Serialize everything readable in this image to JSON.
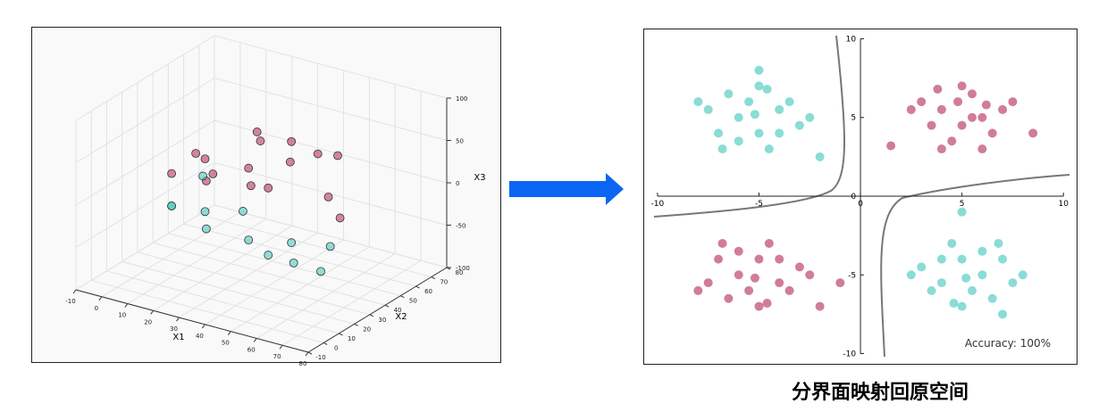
{
  "chart_data": [
    {
      "type": "scatter3d",
      "xlabel": "X1",
      "ylabel": "X2",
      "zlabel": "X3",
      "xlim": [
        -10,
        80
      ],
      "ylim": [
        -10,
        80
      ],
      "zlim": [
        -100,
        100
      ],
      "xticks": [
        -10,
        0,
        10,
        20,
        30,
        40,
        50,
        60,
        70,
        80
      ],
      "yticks": [
        -10,
        0,
        10,
        20,
        30,
        40,
        50,
        60,
        70,
        80
      ],
      "zticks": [
        -100,
        -50,
        0,
        50,
        100
      ],
      "series": [
        {
          "color": "#b3245a",
          "x": [
            9,
            16,
            25,
            36,
            30.3,
            42.3,
            49,
            25,
            56.3,
            72.3,
            25,
            49,
            42.3,
            64,
            9,
            81
          ],
          "y": [
            36,
            30.3,
            20.3,
            25,
            42.3,
            16,
            30.3,
            49,
            36,
            16,
            16,
            16,
            42.3,
            36,
            20.3,
            9
          ],
          "values": [
            25.5,
            31.1,
            31.8,
            42.4,
            50.6,
            36.8,
            54.4,
            49.5,
            63.6,
            48.1,
            28.3,
            39.6,
            59.7,
            67.9,
            19.1,
            38.2
          ]
        },
        {
          "color": "#3cc4ba",
          "x": [
            25,
            36,
            16,
            49,
            42.3,
            9,
            64,
            21.2,
            49,
            9,
            4,
            56.3
          ],
          "y": [
            16,
            25,
            30.3,
            16,
            42.3,
            20.3,
            25,
            46.2,
            56.3,
            20.3,
            49,
            20.3
          ],
          "values": [
            -28.3,
            -42.4,
            -31.1,
            -39.6,
            -59.7,
            -19.1,
            -56.6,
            -44.2,
            -74.2,
            -19.1,
            -19.8,
            -47.7
          ]
        }
      ]
    },
    {
      "type": "scatter",
      "annotation": "Accuracy: 100%",
      "xlim": [
        -10.7,
        10.65
      ],
      "ylim": [
        -10.65,
        10.65
      ],
      "xticks": [
        -10,
        -5,
        0,
        5,
        10
      ],
      "yticks": [
        -10,
        -5,
        0,
        5,
        10
      ],
      "series": [
        {
          "color": "#b3245a",
          "x": [
            3,
            4,
            5,
            6,
            4.5,
            5.5,
            6.5,
            3.5,
            7,
            5,
            4,
            6,
            7.5,
            2.5,
            5.5,
            4.8,
            6.2,
            3.8,
            8.5,
            1.5,
            -5,
            -6,
            -4,
            -5.5,
            -3,
            -7,
            -4.5,
            -6.5,
            -5,
            -3.5,
            -7.5,
            -4,
            -6,
            -2.5,
            -5.2,
            -8,
            -4.6,
            -6.8,
            -1,
            -2
          ],
          "values": [
            6,
            5.5,
            4.5,
            5,
            3.5,
            6.5,
            4,
            4.5,
            5.5,
            7,
            3,
            3,
            6,
            5.5,
            5,
            6,
            5.8,
            6.8,
            4,
            3.2,
            -4,
            -5,
            -5.5,
            -6,
            -4.5,
            -4,
            -3,
            -6.5,
            -7,
            -6,
            -5.5,
            -4,
            -3.5,
            -5,
            -5.2,
            -6,
            -6.8,
            -3,
            -5.5,
            -7
          ]
        },
        {
          "color": "#3cc4ba",
          "x": [
            -5,
            -6,
            -4,
            -5.5,
            -3,
            -7,
            -4.5,
            -6.5,
            -5,
            -3.5,
            -7.5,
            -4,
            -6,
            -2.5,
            -5.2,
            -8,
            -4.6,
            -6.8,
            -2,
            -5,
            5,
            6,
            4,
            5.5,
            3,
            7,
            4.5,
            6.5,
            5,
            3.5,
            7.5,
            4,
            6,
            2.5,
            5.2,
            8,
            4.6,
            6.8,
            5,
            7
          ],
          "values": [
            4,
            5,
            5.5,
            6,
            4.5,
            4,
            3,
            6.5,
            7,
            6,
            5.5,
            4,
            3.5,
            5,
            5.2,
            6,
            6.8,
            3,
            2.5,
            8,
            -4,
            -5,
            -5.5,
            -6,
            -4.5,
            -4,
            -3,
            -6.5,
            -7,
            -6,
            -5.5,
            -4,
            -3.5,
            -5,
            -5.2,
            -5,
            -6.8,
            -3,
            -1,
            -7.5
          ]
        }
      ]
    }
  ],
  "caption": "分界面映射回原空间"
}
